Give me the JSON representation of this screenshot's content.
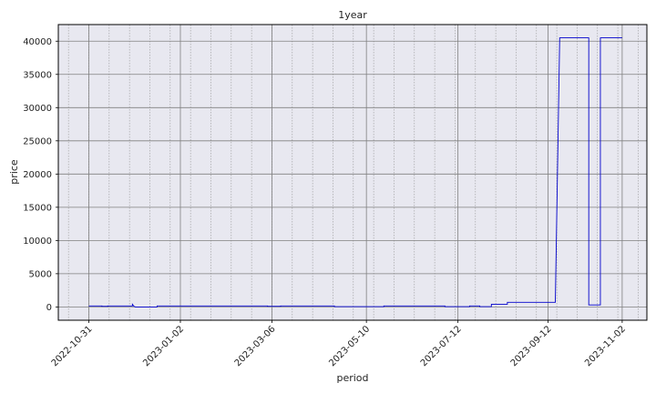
{
  "chart_data": {
    "type": "line",
    "title": "1year",
    "xlabel": "period",
    "ylabel": "price",
    "xlim": [
      "2022-10-10",
      "2023-11-19"
    ],
    "ylim": [
      -2000,
      42500
    ],
    "grid": true,
    "x_ticks": [
      "2022-10-31",
      "2023-01-02",
      "2023-03-06",
      "2023-05-10",
      "2023-07-12",
      "2023-09-12",
      "2023-11-02"
    ],
    "y_ticks": [
      0,
      5000,
      10000,
      15000,
      20000,
      25000,
      30000,
      35000,
      40000
    ],
    "colors": {
      "line": "#0000cc",
      "plot_bg": "#e8e8f0",
      "grid_major": "#808080",
      "grid_minor": "#9a9a9a"
    },
    "series": [
      {
        "values": [
          [
            "2022-10-31",
            150
          ],
          [
            "2022-11-09",
            150
          ],
          [
            "2022-11-09",
            100
          ],
          [
            "2022-11-13",
            100
          ],
          [
            "2022-11-13",
            150
          ],
          [
            "2022-11-30",
            150
          ],
          [
            "2022-11-30",
            400
          ],
          [
            "2022-12-01",
            100
          ],
          [
            "2022-12-02",
            0
          ],
          [
            "2022-12-17",
            0
          ],
          [
            "2022-12-17",
            150
          ],
          [
            "2023-03-03",
            150
          ],
          [
            "2023-03-03",
            100
          ],
          [
            "2023-03-12",
            100
          ],
          [
            "2023-03-12",
            150
          ],
          [
            "2023-04-18",
            150
          ],
          [
            "2023-04-18",
            50
          ],
          [
            "2023-05-22",
            50
          ],
          [
            "2023-05-22",
            150
          ],
          [
            "2023-07-03",
            150
          ],
          [
            "2023-07-03",
            50
          ],
          [
            "2023-07-20",
            50
          ],
          [
            "2023-07-20",
            150
          ],
          [
            "2023-07-27",
            150
          ],
          [
            "2023-07-27",
            50
          ],
          [
            "2023-08-04",
            50
          ],
          [
            "2023-08-04",
            400
          ],
          [
            "2023-08-15",
            400
          ],
          [
            "2023-08-15",
            700
          ],
          [
            "2023-09-17",
            700
          ],
          [
            "2023-09-20",
            40500
          ],
          [
            "2023-10-10",
            40500
          ],
          [
            "2023-10-10",
            300
          ],
          [
            "2023-10-18",
            300
          ],
          [
            "2023-10-18",
            40500
          ],
          [
            "2023-11-02",
            40500
          ]
        ]
      }
    ]
  }
}
